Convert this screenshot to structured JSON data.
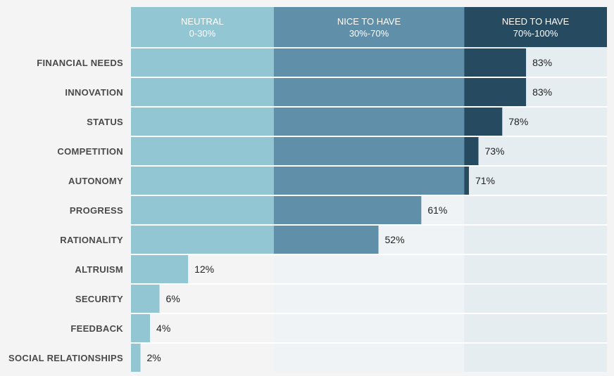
{
  "chart_data": {
    "type": "bar",
    "orientation": "horizontal",
    "xlim": [
      0,
      100
    ],
    "bands": [
      {
        "label": "NEUTRAL",
        "range_label": "0-30%",
        "from": 0,
        "to": 30,
        "header_color": "#93c6d3",
        "bg_color": "#f4f4f4"
      },
      {
        "label": "NICE TO HAVE",
        "range_label": "30%-70%",
        "from": 30,
        "to": 70,
        "header_color": "#608fa9",
        "bg_color": "#f0f3f5"
      },
      {
        "label": "NEED TO HAVE",
        "range_label": "70%-100%",
        "from": 70,
        "to": 100,
        "header_color": "#264a60",
        "bg_color": "#e6edf1"
      }
    ],
    "categories": [
      "FINANCIAL NEEDS",
      "INNOVATION",
      "STATUS",
      "COMPETITION",
      "AUTONOMY",
      "PROGRESS",
      "RATIONALITY",
      "ALTRUISM",
      "SECURITY",
      "FEEDBACK",
      "SOCIAL RELATIONSHIPS"
    ],
    "values": [
      83,
      83,
      78,
      73,
      71,
      61,
      52,
      12,
      6,
      4,
      2
    ],
    "value_labels": [
      "83%",
      "83%",
      "78%",
      "73%",
      "71%",
      "61%",
      "52%",
      "12%",
      "6%",
      "4%",
      "2%"
    ]
  }
}
